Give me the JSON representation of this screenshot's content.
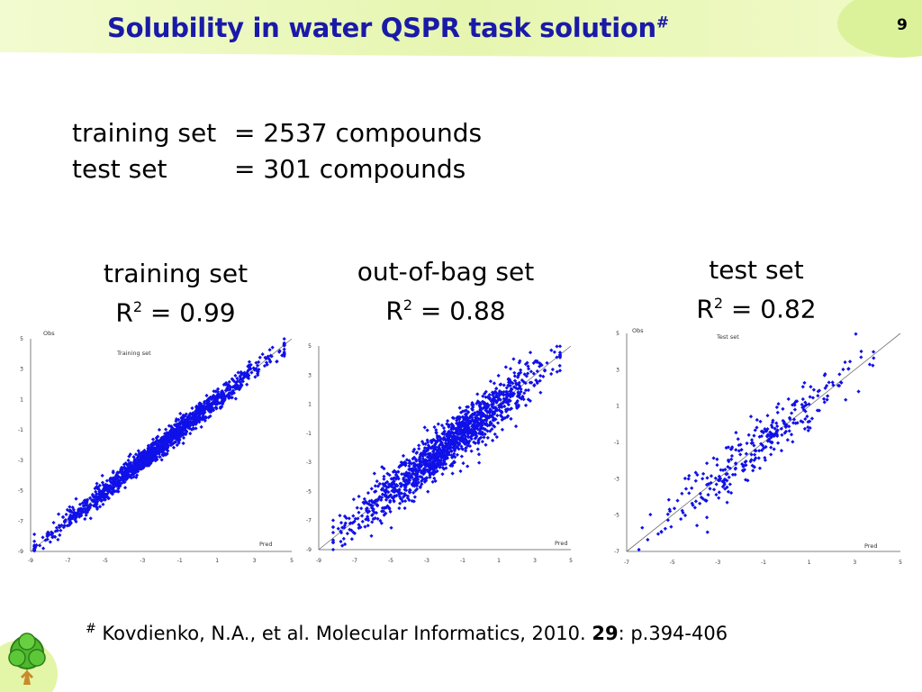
{
  "slide": {
    "title": "Solubility in water QSPR task solution",
    "title_mark": "#",
    "page_number": "9"
  },
  "stats": [
    {
      "label": "training set",
      "value": "= 2537 compounds"
    },
    {
      "label": "test set",
      "value": "= 301 compounds"
    }
  ],
  "panels": [
    {
      "heading": "training set",
      "r2_label": "R",
      "r2_sup": "2",
      "r2_value": " = 0.99"
    },
    {
      "heading": "out-of-bag set",
      "r2_label": "R",
      "r2_sup": "2",
      "r2_value": " = 0.88"
    },
    {
      "heading": "test set",
      "r2_label": "R",
      "r2_sup": "2",
      "r2_value": " = 0.82"
    }
  ],
  "footnote": {
    "mark": "#",
    "text": "Kovdienko, N.A., et al. Molecular Informatics, 2010. ",
    "volume": "29",
    "pages": ": p.394-406"
  },
  "colors": {
    "title": "#1a1aa8",
    "points": "#1010e8",
    "diagonal": "#707070",
    "axis": "#808080",
    "band": "#eaf7b8"
  },
  "chart_data": [
    {
      "type": "scatter",
      "title": "Training set",
      "xlabel": "Pred",
      "ylabel": "Obs",
      "xlim": [
        -9,
        5
      ],
      "ylim": [
        -9,
        5
      ],
      "xticks": [
        "-9",
        "-7",
        "-5",
        "-3",
        "-1",
        "1",
        "3",
        "5"
      ],
      "yticks": [
        "-9",
        "-7",
        "-5",
        "-3",
        "-1",
        "1",
        "3",
        "5"
      ],
      "r2": 0.99,
      "n": 2537,
      "spread": 0.35,
      "range": [
        -8.8,
        4.6
      ],
      "reference_line": "y = x"
    },
    {
      "type": "scatter",
      "title": "",
      "xlabel": "Pred",
      "ylabel": "",
      "xlim": [
        -9,
        5
      ],
      "ylim": [
        -9,
        5
      ],
      "xticks": [
        "-9",
        "-7",
        "-5",
        "-3",
        "-1",
        "1",
        "3",
        "5"
      ],
      "yticks": [
        "-9",
        "-7",
        "-5",
        "-3",
        "-1",
        "1",
        "3",
        "5"
      ],
      "r2": 0.88,
      "n": 2537,
      "spread": 0.8,
      "range": [
        -8.2,
        4.4
      ],
      "reference_line": "y = x"
    },
    {
      "type": "scatter",
      "title": "Test set",
      "xlabel": "Pred",
      "ylabel": "Obs",
      "xlim": [
        -7,
        5
      ],
      "ylim": [
        -7,
        5
      ],
      "xticks": [
        "-7",
        "-5",
        "-3",
        "-1",
        "1",
        "3",
        "5"
      ],
      "yticks": [
        "-7",
        "-5",
        "-3",
        "-1",
        "1",
        "3",
        "5"
      ],
      "r2": 0.82,
      "n": 301,
      "spread": 0.75,
      "range": [
        -6.5,
        4.2
      ],
      "reference_line": "y = x"
    }
  ]
}
